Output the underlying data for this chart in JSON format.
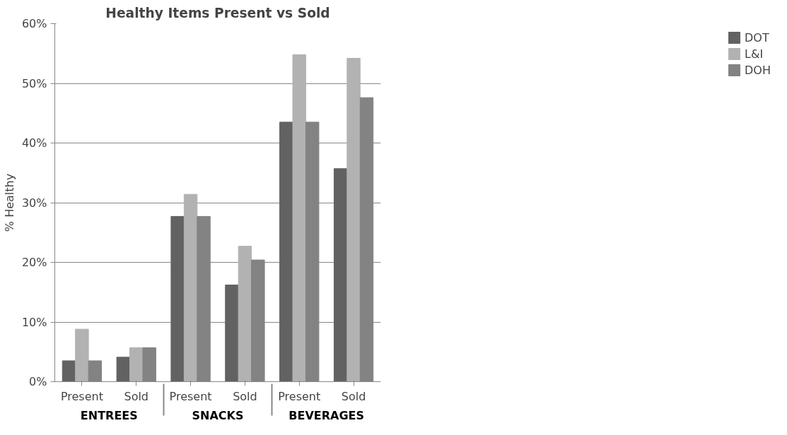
{
  "chart_data": {
    "type": "bar",
    "title": "Healthy Items Present vs Sold",
    "ylabel": "% Healthy",
    "categories": [
      "Present",
      "Sold",
      "Present",
      "Sold",
      "Present",
      "Sold"
    ],
    "annotations": [
      "ENTREES",
      "SNACKS",
      "BEVERAGES"
    ],
    "series": [
      {
        "name": "DOT",
        "color": "#626262",
        "values": [
          3.5,
          4.1,
          27.7,
          16.2,
          43.5,
          35.7
        ]
      },
      {
        "name": "L&I",
        "color": "#b2b2b2",
        "values": [
          8.8,
          5.7,
          31.4,
          22.7,
          54.8,
          54.2
        ]
      },
      {
        "name": "DOH",
        "color": "#838383",
        "values": [
          3.5,
          5.7,
          27.7,
          20.4,
          43.5,
          47.6
        ]
      }
    ],
    "ylim": [
      0,
      60
    ],
    "yticks": [
      {
        "value": 0,
        "label": "0%"
      },
      {
        "value": 10,
        "label": "10%"
      },
      {
        "value": 20,
        "label": "20%"
      },
      {
        "value": 30,
        "label": "30%"
      },
      {
        "value": 40,
        "label": "40%"
      },
      {
        "value": 50,
        "label": "50%"
      },
      {
        "value": 60,
        "label": "60%"
      }
    ],
    "grid": "y",
    "legend": "right"
  }
}
